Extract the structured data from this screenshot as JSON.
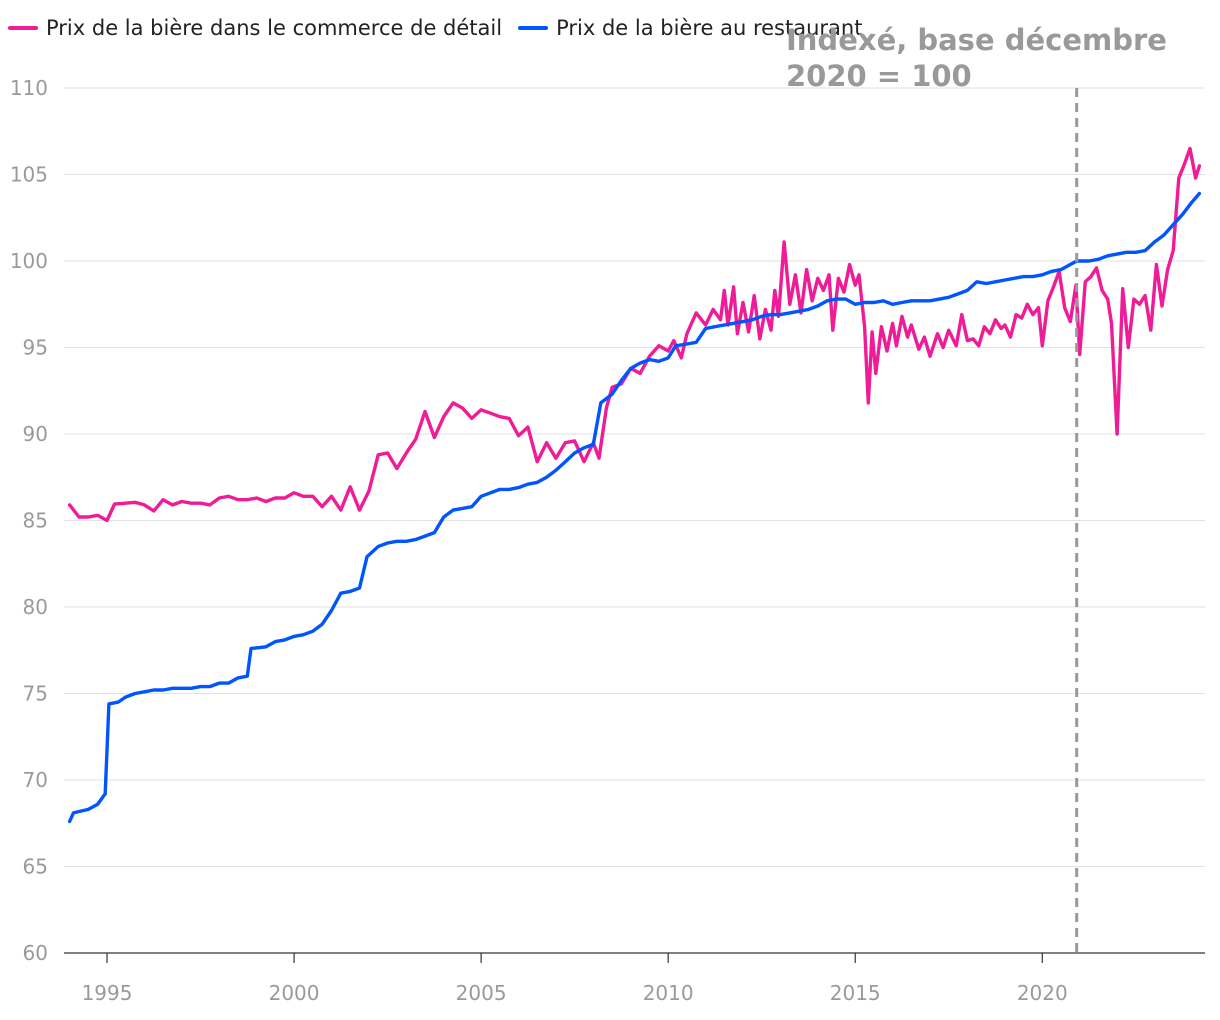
{
  "chart_data": {
    "type": "line",
    "annotation": "Indexé, base décembre 2020 = 100",
    "x_ticks": [
      "1995",
      "2000",
      "2005",
      "2010",
      "2015",
      "2020"
    ],
    "y_ticks": [
      "60",
      "65",
      "70",
      "75",
      "80",
      "85",
      "90",
      "95",
      "100",
      "105",
      "110"
    ],
    "xlim": [
      1993.85,
      2024.35
    ],
    "ylim": [
      60,
      110
    ],
    "grid": true,
    "legend_position": "top-left",
    "reference_line": {
      "x": 2020.92,
      "style": "dashed",
      "color": "#999999"
    },
    "series": [
      {
        "name": "Prix de la bière dans le commerce de détail",
        "color": "#ee1c96",
        "points": [
          [
            1994.0,
            85.9
          ],
          [
            1994.25,
            85.2
          ],
          [
            1994.5,
            85.2
          ],
          [
            1994.75,
            85.3
          ],
          [
            1995.0,
            85.0
          ],
          [
            1995.2,
            85.95
          ],
          [
            1995.5,
            86.0
          ],
          [
            1995.75,
            86.05
          ],
          [
            1996.0,
            85.9
          ],
          [
            1996.25,
            85.55
          ],
          [
            1996.5,
            86.2
          ],
          [
            1996.75,
            85.9
          ],
          [
            1997.0,
            86.1
          ],
          [
            1997.25,
            86.0
          ],
          [
            1997.5,
            86.0
          ],
          [
            1997.75,
            85.9
          ],
          [
            1998.0,
            86.3
          ],
          [
            1998.25,
            86.4
          ],
          [
            1998.5,
            86.2
          ],
          [
            1998.75,
            86.2
          ],
          [
            1999.0,
            86.3
          ],
          [
            1999.25,
            86.1
          ],
          [
            1999.5,
            86.3
          ],
          [
            1999.75,
            86.3
          ],
          [
            2000.0,
            86.6
          ],
          [
            2000.25,
            86.4
          ],
          [
            2000.5,
            86.4
          ],
          [
            2000.75,
            85.8
          ],
          [
            2001.0,
            86.4
          ],
          [
            2001.25,
            85.6
          ],
          [
            2001.5,
            86.95
          ],
          [
            2001.75,
            85.6
          ],
          [
            2002.0,
            86.7
          ],
          [
            2002.25,
            88.8
          ],
          [
            2002.5,
            88.9
          ],
          [
            2002.75,
            88.0
          ],
          [
            2003.0,
            88.9
          ],
          [
            2003.25,
            89.7
          ],
          [
            2003.5,
            91.3
          ],
          [
            2003.75,
            89.8
          ],
          [
            2004.0,
            91.0
          ],
          [
            2004.25,
            91.8
          ],
          [
            2004.5,
            91.5
          ],
          [
            2004.75,
            90.9
          ],
          [
            2005.0,
            91.4
          ],
          [
            2005.25,
            91.2
          ],
          [
            2005.5,
            91.0
          ],
          [
            2005.75,
            90.9
          ],
          [
            2006.0,
            89.9
          ],
          [
            2006.25,
            90.4
          ],
          [
            2006.5,
            88.4
          ],
          [
            2006.75,
            89.5
          ],
          [
            2007.0,
            88.6
          ],
          [
            2007.25,
            89.5
          ],
          [
            2007.5,
            89.6
          ],
          [
            2007.75,
            88.4
          ],
          [
            2008.0,
            89.5
          ],
          [
            2008.15,
            88.6
          ],
          [
            2008.35,
            91.5
          ],
          [
            2008.5,
            92.7
          ],
          [
            2008.75,
            92.9
          ],
          [
            2009.0,
            93.8
          ],
          [
            2009.25,
            93.5
          ],
          [
            2009.5,
            94.5
          ],
          [
            2009.75,
            95.1
          ],
          [
            2010.0,
            94.8
          ],
          [
            2010.15,
            95.4
          ],
          [
            2010.35,
            94.4
          ],
          [
            2010.5,
            95.8
          ],
          [
            2010.75,
            97.0
          ],
          [
            2011.0,
            96.3
          ],
          [
            2011.2,
            97.2
          ],
          [
            2011.4,
            96.6
          ],
          [
            2011.5,
            98.3
          ],
          [
            2011.6,
            96.3
          ],
          [
            2011.75,
            98.5
          ],
          [
            2011.85,
            95.8
          ],
          [
            2012.0,
            97.6
          ],
          [
            2012.15,
            95.9
          ],
          [
            2012.3,
            98.0
          ],
          [
            2012.45,
            95.5
          ],
          [
            2012.6,
            97.2
          ],
          [
            2012.75,
            96.0
          ],
          [
            2012.85,
            98.3
          ],
          [
            2012.95,
            96.8
          ],
          [
            2013.1,
            101.1
          ],
          [
            2013.25,
            97.5
          ],
          [
            2013.4,
            99.2
          ],
          [
            2013.55,
            97.0
          ],
          [
            2013.7,
            99.5
          ],
          [
            2013.85,
            97.7
          ],
          [
            2014.0,
            99.0
          ],
          [
            2014.15,
            98.3
          ],
          [
            2014.3,
            99.2
          ],
          [
            2014.4,
            96.0
          ],
          [
            2014.55,
            99.0
          ],
          [
            2014.7,
            98.2
          ],
          [
            2014.85,
            99.8
          ],
          [
            2015.0,
            98.6
          ],
          [
            2015.1,
            99.2
          ],
          [
            2015.25,
            96.2
          ],
          [
            2015.35,
            91.8
          ],
          [
            2015.45,
            95.9
          ],
          [
            2015.55,
            93.5
          ],
          [
            2015.7,
            96.2
          ],
          [
            2015.85,
            94.8
          ],
          [
            2016.0,
            96.4
          ],
          [
            2016.1,
            95.1
          ],
          [
            2016.25,
            96.8
          ],
          [
            2016.4,
            95.6
          ],
          [
            2016.5,
            96.3
          ],
          [
            2016.7,
            94.9
          ],
          [
            2016.85,
            95.6
          ],
          [
            2017.0,
            94.5
          ],
          [
            2017.2,
            95.8
          ],
          [
            2017.35,
            95.0
          ],
          [
            2017.5,
            96.0
          ],
          [
            2017.7,
            95.1
          ],
          [
            2017.85,
            96.9
          ],
          [
            2018.0,
            95.4
          ],
          [
            2018.15,
            95.5
          ],
          [
            2018.3,
            95.1
          ],
          [
            2018.45,
            96.2
          ],
          [
            2018.6,
            95.8
          ],
          [
            2018.75,
            96.6
          ],
          [
            2018.9,
            96.1
          ],
          [
            2019.0,
            96.3
          ],
          [
            2019.15,
            95.6
          ],
          [
            2019.3,
            96.9
          ],
          [
            2019.45,
            96.7
          ],
          [
            2019.6,
            97.5
          ],
          [
            2019.75,
            96.9
          ],
          [
            2019.9,
            97.3
          ],
          [
            2020.0,
            95.1
          ],
          [
            2020.15,
            97.7
          ],
          [
            2020.3,
            98.5
          ],
          [
            2020.45,
            99.4
          ],
          [
            2020.6,
            97.3
          ],
          [
            2020.75,
            96.5
          ],
          [
            2020.9,
            98.6
          ],
          [
            2021.0,
            94.6
          ],
          [
            2021.15,
            98.8
          ],
          [
            2021.3,
            99.1
          ],
          [
            2021.45,
            99.6
          ],
          [
            2021.6,
            98.3
          ],
          [
            2021.75,
            97.8
          ],
          [
            2021.85,
            96.4
          ],
          [
            2022.0,
            90.0
          ],
          [
            2022.15,
            98.4
          ],
          [
            2022.3,
            95.0
          ],
          [
            2022.45,
            97.8
          ],
          [
            2022.6,
            97.5
          ],
          [
            2022.75,
            98.0
          ],
          [
            2022.9,
            96.0
          ],
          [
            2023.05,
            99.8
          ],
          [
            2023.2,
            97.4
          ],
          [
            2023.35,
            99.5
          ],
          [
            2023.5,
            100.6
          ],
          [
            2023.65,
            104.8
          ],
          [
            2023.8,
            105.6
          ],
          [
            2023.95,
            106.5
          ],
          [
            2024.1,
            104.8
          ],
          [
            2024.2,
            105.5
          ]
        ]
      },
      {
        "name": "Prix de la bière au restaurant",
        "color": "#0055ff",
        "points": [
          [
            1994.0,
            67.6
          ],
          [
            1994.1,
            68.1
          ],
          [
            1994.3,
            68.2
          ],
          [
            1994.5,
            68.3
          ],
          [
            1994.75,
            68.6
          ],
          [
            1994.95,
            69.2
          ],
          [
            1995.05,
            74.4
          ],
          [
            1995.3,
            74.5
          ],
          [
            1995.5,
            74.8
          ],
          [
            1995.75,
            75.0
          ],
          [
            1996.0,
            75.1
          ],
          [
            1996.25,
            75.2
          ],
          [
            1996.5,
            75.2
          ],
          [
            1996.75,
            75.3
          ],
          [
            1997.0,
            75.3
          ],
          [
            1997.25,
            75.3
          ],
          [
            1997.5,
            75.4
          ],
          [
            1997.75,
            75.4
          ],
          [
            1998.0,
            75.6
          ],
          [
            1998.25,
            75.6
          ],
          [
            1998.5,
            75.9
          ],
          [
            1998.75,
            76.0
          ],
          [
            1998.85,
            77.6
          ],
          [
            1999.25,
            77.7
          ],
          [
            1999.5,
            78.0
          ],
          [
            1999.75,
            78.1
          ],
          [
            2000.0,
            78.3
          ],
          [
            2000.25,
            78.4
          ],
          [
            2000.5,
            78.6
          ],
          [
            2000.75,
            79.0
          ],
          [
            2001.0,
            79.8
          ],
          [
            2001.25,
            80.8
          ],
          [
            2001.5,
            80.9
          ],
          [
            2001.75,
            81.1
          ],
          [
            2001.95,
            82.9
          ],
          [
            2002.25,
            83.5
          ],
          [
            2002.5,
            83.7
          ],
          [
            2002.75,
            83.8
          ],
          [
            2003.0,
            83.8
          ],
          [
            2003.25,
            83.9
          ],
          [
            2003.5,
            84.1
          ],
          [
            2003.75,
            84.3
          ],
          [
            2004.0,
            85.2
          ],
          [
            2004.25,
            85.6
          ],
          [
            2004.5,
            85.7
          ],
          [
            2004.75,
            85.8
          ],
          [
            2005.0,
            86.4
          ],
          [
            2005.25,
            86.6
          ],
          [
            2005.5,
            86.8
          ],
          [
            2005.75,
            86.8
          ],
          [
            2006.0,
            86.9
          ],
          [
            2006.25,
            87.1
          ],
          [
            2006.5,
            87.2
          ],
          [
            2006.75,
            87.5
          ],
          [
            2007.0,
            87.9
          ],
          [
            2007.25,
            88.4
          ],
          [
            2007.5,
            88.9
          ],
          [
            2007.75,
            89.2
          ],
          [
            2008.0,
            89.4
          ],
          [
            2008.2,
            91.8
          ],
          [
            2008.5,
            92.3
          ],
          [
            2008.75,
            93.1
          ],
          [
            2009.0,
            93.8
          ],
          [
            2009.25,
            94.1
          ],
          [
            2009.5,
            94.3
          ],
          [
            2009.75,
            94.2
          ],
          [
            2010.0,
            94.4
          ],
          [
            2010.2,
            95.1
          ],
          [
            2010.5,
            95.2
          ],
          [
            2010.75,
            95.3
          ],
          [
            2011.0,
            96.1
          ],
          [
            2011.25,
            96.2
          ],
          [
            2011.5,
            96.3
          ],
          [
            2011.75,
            96.4
          ],
          [
            2012.0,
            96.5
          ],
          [
            2012.25,
            96.6
          ],
          [
            2012.5,
            96.8
          ],
          [
            2012.75,
            96.9
          ],
          [
            2013.0,
            96.9
          ],
          [
            2013.25,
            97.0
          ],
          [
            2013.5,
            97.1
          ],
          [
            2013.75,
            97.2
          ],
          [
            2014.0,
            97.4
          ],
          [
            2014.25,
            97.7
          ],
          [
            2014.5,
            97.8
          ],
          [
            2014.75,
            97.8
          ],
          [
            2015.0,
            97.5
          ],
          [
            2015.25,
            97.6
          ],
          [
            2015.5,
            97.6
          ],
          [
            2015.75,
            97.7
          ],
          [
            2016.0,
            97.5
          ],
          [
            2016.25,
            97.6
          ],
          [
            2016.5,
            97.7
          ],
          [
            2016.75,
            97.7
          ],
          [
            2017.0,
            97.7
          ],
          [
            2017.25,
            97.8
          ],
          [
            2017.5,
            97.9
          ],
          [
            2017.75,
            98.1
          ],
          [
            2018.0,
            98.3
          ],
          [
            2018.25,
            98.8
          ],
          [
            2018.5,
            98.7
          ],
          [
            2018.75,
            98.8
          ],
          [
            2019.0,
            98.9
          ],
          [
            2019.25,
            99.0
          ],
          [
            2019.5,
            99.1
          ],
          [
            2019.75,
            99.1
          ],
          [
            2020.0,
            99.2
          ],
          [
            2020.25,
            99.4
          ],
          [
            2020.5,
            99.5
          ],
          [
            2020.75,
            99.8
          ],
          [
            2020.92,
            100.0
          ],
          [
            2021.25,
            100.0
          ],
          [
            2021.5,
            100.1
          ],
          [
            2021.75,
            100.3
          ],
          [
            2022.0,
            100.4
          ],
          [
            2022.25,
            100.5
          ],
          [
            2022.5,
            100.5
          ],
          [
            2022.75,
            100.6
          ],
          [
            2023.0,
            101.1
          ],
          [
            2023.25,
            101.5
          ],
          [
            2023.5,
            102.1
          ],
          [
            2023.75,
            102.7
          ],
          [
            2024.0,
            103.4
          ],
          [
            2024.2,
            103.9
          ]
        ]
      }
    ]
  }
}
